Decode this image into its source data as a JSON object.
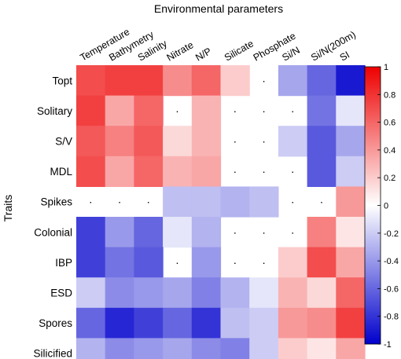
{
  "chart_data": {
    "type": "heatmap",
    "title": "Environmental parameters",
    "ylabel": "Traits",
    "columns": [
      "Temperature",
      "Bathymetry",
      "Salinity",
      "Nitrate",
      "N/P",
      "Silicate",
      "Phosphate",
      "Si/N",
      "Si/N(200m)",
      "SI"
    ],
    "rows": [
      "Topt",
      "Solitary",
      "S/V",
      "MDL",
      "Spikes",
      "Colonial",
      "IBP",
      "ESD",
      "Spores",
      "Silicified"
    ],
    "values": [
      [
        0.7,
        0.75,
        0.75,
        0.45,
        0.6,
        0.2,
        null,
        -0.35,
        -0.6,
        -0.9
      ],
      [
        0.75,
        0.35,
        0.6,
        null,
        0.3,
        null,
        null,
        null,
        -0.55,
        -0.1
      ],
      [
        0.65,
        0.5,
        0.65,
        0.15,
        0.3,
        null,
        null,
        -0.2,
        -0.65,
        -0.35
      ],
      [
        0.7,
        0.35,
        0.6,
        0.3,
        0.35,
        null,
        null,
        null,
        -0.65,
        -0.2
      ],
      [
        null,
        null,
        null,
        -0.25,
        -0.25,
        -0.3,
        -0.25,
        null,
        null,
        0.4
      ],
      [
        -0.75,
        -0.4,
        -0.6,
        -0.1,
        -0.3,
        null,
        null,
        null,
        0.5,
        0.1
      ],
      [
        -0.75,
        -0.55,
        -0.65,
        null,
        -0.4,
        null,
        null,
        0.2,
        0.7,
        0.35
      ],
      [
        -0.2,
        -0.45,
        -0.4,
        -0.35,
        -0.5,
        -0.3,
        -0.1,
        0.3,
        0.15,
        0.6
      ],
      [
        -0.6,
        -0.85,
        -0.75,
        -0.6,
        -0.8,
        -0.25,
        -0.2,
        0.4,
        0.45,
        0.75
      ],
      [
        -0.3,
        -0.45,
        -0.4,
        -0.35,
        -0.45,
        -0.5,
        -0.2,
        0.2,
        0.1,
        0.35
      ]
    ],
    "missing_marker": "·",
    "colorscale": {
      "min": -1,
      "max": 1,
      "low": "#0000cc",
      "mid": "#ffffff",
      "high": "#ee0000"
    },
    "colorbar_ticks": [
      "1",
      "0.8",
      "0.6",
      "0.4",
      "0.2",
      "0",
      "-0.2",
      "-0.4",
      "-0.6",
      "-0.8",
      "-1"
    ],
    "legend_position": "right"
  }
}
